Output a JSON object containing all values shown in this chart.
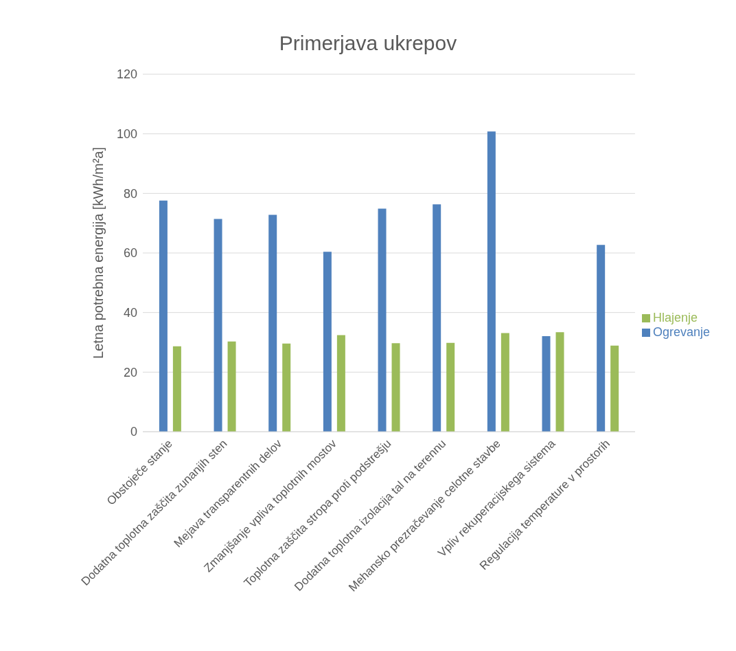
{
  "chart_data": {
    "type": "bar",
    "title": "Primerjava ukrepov",
    "ylabel": "Letna potrebna energija [kWh/m²a]",
    "categories": [
      "Obstoječe stanje",
      "Dodatna toplotna zaščita zunanjih sten",
      "Mejava transparentnih delov",
      "Zmanjšanje vpliva toplotnih mostov",
      "Toplotna zaščita stropa proti podstrešju",
      "Dodatna toplotna izolacija tal na terennu",
      "Mehansko prezračevanje celotne stavbe",
      "Vpliv rekuperacijskega sistema",
      "Regulacija temperature v prostorih"
    ],
    "series": [
      {
        "name": "Ogrevanje",
        "color": "#4f81bd",
        "values": [
          77.6,
          71.4,
          72.8,
          60.4,
          74.9,
          76.3,
          100.8,
          32.1,
          62.7
        ]
      },
      {
        "name": "Hlajenje",
        "color": "#9bbb59",
        "values": [
          28.7,
          30.3,
          29.6,
          32.4,
          29.7,
          29.8,
          33.1,
          33.4,
          28.9
        ]
      }
    ],
    "ylim": [
      0,
      120
    ],
    "yticks": [
      0,
      20,
      40,
      60,
      80,
      100,
      120
    ],
    "grid": "y",
    "legend": "right"
  }
}
